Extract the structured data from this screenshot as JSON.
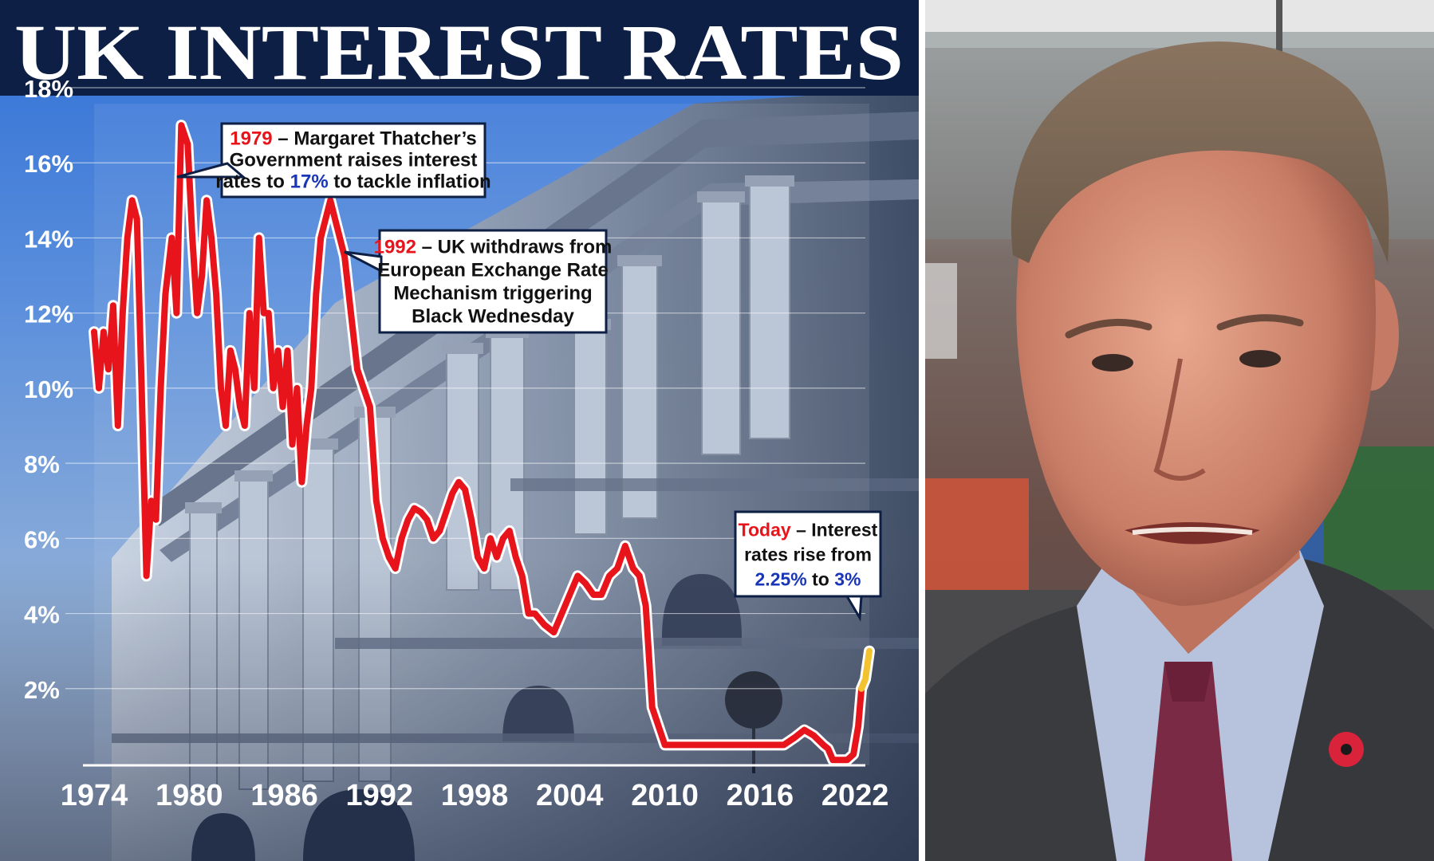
{
  "headline": "UK INTEREST RATES",
  "colors": {
    "header_bg": "#0e1f45",
    "line": "#e8141c",
    "line_recent": "#f2c230",
    "highlight_year": "#e8141c",
    "highlight_rate": "#1936b8",
    "callout_text": "#111111"
  },
  "annotations": [
    {
      "id": "thatcher",
      "lines": [
        [
          {
            "t": "1979",
            "c": "red"
          },
          {
            "t": " – Margaret Thatcher’s",
            "c": "dark"
          }
        ],
        [
          {
            "t": "Government raises interest",
            "c": "dark"
          }
        ],
        [
          {
            "t": "rates to ",
            "c": "dark"
          },
          {
            "t": "17%",
            "c": "blue"
          },
          {
            "t": " to tackle inflation",
            "c": "dark"
          }
        ]
      ]
    },
    {
      "id": "black-wednesday",
      "lines": [
        [
          {
            "t": "1992",
            "c": "red"
          },
          {
            "t": " – UK withdraws from",
            "c": "dark"
          }
        ],
        [
          {
            "t": "European Exchange Rate",
            "c": "dark"
          }
        ],
        [
          {
            "t": "Mechanism triggering",
            "c": "dark"
          }
        ],
        [
          {
            "t": "Black Wednesday",
            "c": "dark"
          }
        ]
      ]
    },
    {
      "id": "today",
      "lines": [
        [
          {
            "t": "Today",
            "c": "red"
          },
          {
            "t": " – Interest",
            "c": "dark"
          }
        ],
        [
          {
            "t": "rates rise from",
            "c": "dark"
          }
        ],
        [
          {
            "t": "2.25%",
            "c": "blue"
          },
          {
            "t": " to ",
            "c": "dark"
          },
          {
            "t": "3%",
            "c": "blue"
          }
        ]
      ]
    }
  ],
  "photo": {
    "subject": "Man in dark suit, light blue shirt and burgundy tie with a red poppy pin, photographed outdoors"
  },
  "chart_data": {
    "type": "line",
    "title": "UK INTEREST RATES",
    "xlabel": "",
    "ylabel": "",
    "ylim": [
      0,
      18
    ],
    "xlim": [
      1974,
      2022.9
    ],
    "y_ticks": [
      "2%",
      "4%",
      "6%",
      "8%",
      "10%",
      "12%",
      "14%",
      "16%",
      "18%"
    ],
    "y_tick_values": [
      2,
      4,
      6,
      8,
      10,
      12,
      14,
      16,
      18
    ],
    "x_ticks": [
      "1974",
      "1980",
      "1986",
      "1992",
      "1998",
      "2004",
      "2010",
      "2016",
      "2022"
    ],
    "x_tick_values": [
      1974,
      1980,
      1986,
      1992,
      1998,
      2004,
      2010,
      2016,
      2022
    ],
    "grid": true,
    "series": [
      {
        "color": "#e8141c",
        "x": [
          1974.0,
          1974.3,
          1974.6,
          1974.9,
          1975.2,
          1975.5,
          1975.8,
          1976.1,
          1976.4,
          1976.7,
          1977.0,
          1977.3,
          1977.6,
          1977.9,
          1978.2,
          1978.5,
          1978.9,
          1979.2,
          1979.5,
          1979.9,
          1980.2,
          1980.5,
          1980.8,
          1981.1,
          1981.4,
          1981.7,
          1982.0,
          1982.3,
          1982.6,
          1982.9,
          1983.2,
          1983.5,
          1983.8,
          1984.1,
          1984.4,
          1984.7,
          1985.0,
          1985.3,
          1985.6,
          1985.9,
          1986.2,
          1986.5,
          1986.8,
          1987.1,
          1987.4,
          1987.7,
          1988.0,
          1988.3,
          1988.6,
          1988.9,
          1989.2,
          1989.5,
          1989.8,
          1990.2,
          1990.6,
          1991.0,
          1991.4,
          1991.8,
          1992.2,
          1992.6,
          1993.0,
          1993.4,
          1993.8,
          1994.2,
          1994.6,
          1995.0,
          1995.4,
          1995.8,
          1996.2,
          1996.6,
          1997.0,
          1997.4,
          1997.8,
          1998.2,
          1998.6,
          1999.0,
          1999.4,
          1999.8,
          2000.2,
          2000.6,
          2001.0,
          2001.4,
          2001.8,
          2002.4,
          2003.0,
          2003.5,
          2004.0,
          2004.5,
          2005.0,
          2005.5,
          2006.0,
          2006.5,
          2007.0,
          2007.5,
          2008.0,
          2008.4,
          2008.8,
          2009.2,
          2010.0,
          2011.0,
          2012.0,
          2013.0,
          2014.0,
          2015.0,
          2016.0,
          2016.8,
          2017.5,
          2018.2,
          2018.8,
          2019.4,
          2020.0,
          2020.3,
          2020.6,
          2021.0,
          2021.5,
          2021.9,
          2022.2,
          2022.4
        ],
        "values": [
          11.5,
          10.0,
          11.5,
          10.5,
          12.2,
          9.0,
          12.0,
          14.0,
          15.0,
          14.5,
          10.0,
          5.0,
          7.0,
          6.5,
          10.0,
          12.5,
          14.0,
          12.0,
          17.0,
          16.5,
          14.0,
          12.0,
          13.0,
          15.0,
          14.0,
          12.5,
          10.0,
          9.0,
          11.0,
          10.5,
          9.5,
          9.0,
          12.0,
          10.0,
          14.0,
          12.0,
          12.0,
          10.0,
          11.0,
          9.5,
          11.0,
          8.5,
          10.0,
          7.5,
          9.0,
          10.0,
          12.5,
          14.0,
          14.5,
          15.0,
          14.5,
          14.0,
          13.5,
          12.0,
          10.5,
          10.0,
          9.5,
          7.0,
          6.0,
          5.5,
          5.2,
          6.0,
          6.5,
          6.8,
          6.7,
          6.5,
          6.0,
          6.2,
          6.7,
          7.2,
          7.5,
          7.3,
          6.5,
          5.5,
          5.2,
          6.0,
          5.5,
          6.0,
          6.2,
          5.5,
          5.0,
          4.0,
          4.0,
          3.7,
          3.5,
          4.0,
          4.5,
          5.0,
          4.8,
          4.5,
          4.5,
          5.0,
          5.2,
          5.8,
          5.2,
          5.0,
          4.2,
          1.5,
          0.5,
          0.5,
          0.5,
          0.5,
          0.5,
          0.5,
          0.5,
          0.5,
          0.5,
          0.7,
          0.9,
          0.75,
          0.5,
          0.4,
          0.1,
          0.1,
          0.1,
          0.25,
          1.0,
          2.0
        ]
      },
      {
        "color": "#f2c230",
        "x": [
          2022.4,
          2022.65,
          2022.9
        ],
        "values": [
          2.0,
          2.25,
          3.0
        ]
      }
    ]
  }
}
